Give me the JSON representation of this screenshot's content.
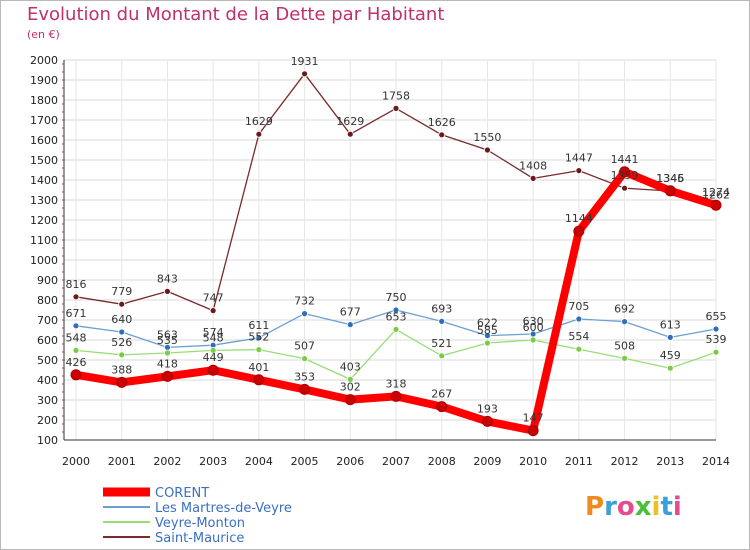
{
  "header": {
    "title": "Evolution du Montant de la Dette par Habitant",
    "subtitle": "(en €)"
  },
  "logo": {
    "text": "Proxiti"
  },
  "chart_data": {
    "type": "line",
    "title": "Evolution du Montant de la Dette par Habitant",
    "subtitle": "(en €)",
    "xlabel": "",
    "ylabel": "",
    "x": [
      2000,
      2001,
      2002,
      2003,
      2004,
      2005,
      2006,
      2007,
      2008,
      2009,
      2010,
      2011,
      2012,
      2013,
      2014
    ],
    "ylim": [
      100,
      2000
    ],
    "yticks": [
      100,
      200,
      300,
      400,
      500,
      600,
      700,
      800,
      900,
      1000,
      1100,
      1200,
      1300,
      1400,
      1500,
      1600,
      1700,
      1800,
      1900,
      2000
    ],
    "grid": "horizontal",
    "legend_position": "bottom-left",
    "series": [
      {
        "name": "CORENT",
        "color": "#ff0000",
        "marker": "#cc0000",
        "values": [
          426,
          388,
          418,
          449,
          401,
          353,
          302,
          318,
          267,
          193,
          147,
          1144,
          1441,
          1346,
          1274
        ]
      },
      {
        "name": "Les Martres-de-Veyre",
        "color": "#6a9fd4",
        "marker": "#2d6fb8",
        "values": [
          671,
          640,
          563,
          574,
          611,
          732,
          677,
          750,
          693,
          622,
          630,
          705,
          692,
          613,
          655
        ]
      },
      {
        "name": "Veyre-Monton",
        "color": "#99dd77",
        "marker": "#77cc44",
        "values": [
          548,
          526,
          535,
          548,
          552,
          507,
          403,
          653,
          521,
          585,
          600,
          554,
          508,
          459,
          539
        ]
      },
      {
        "name": "Saint-Maurice",
        "color": "#7a2a2a",
        "marker": "#6a1a1a",
        "values": [
          816,
          779,
          843,
          747,
          1629,
          1931,
          1629,
          1758,
          1626,
          1550,
          1408,
          1447,
          1359,
          1345,
          1262
        ]
      }
    ]
  }
}
